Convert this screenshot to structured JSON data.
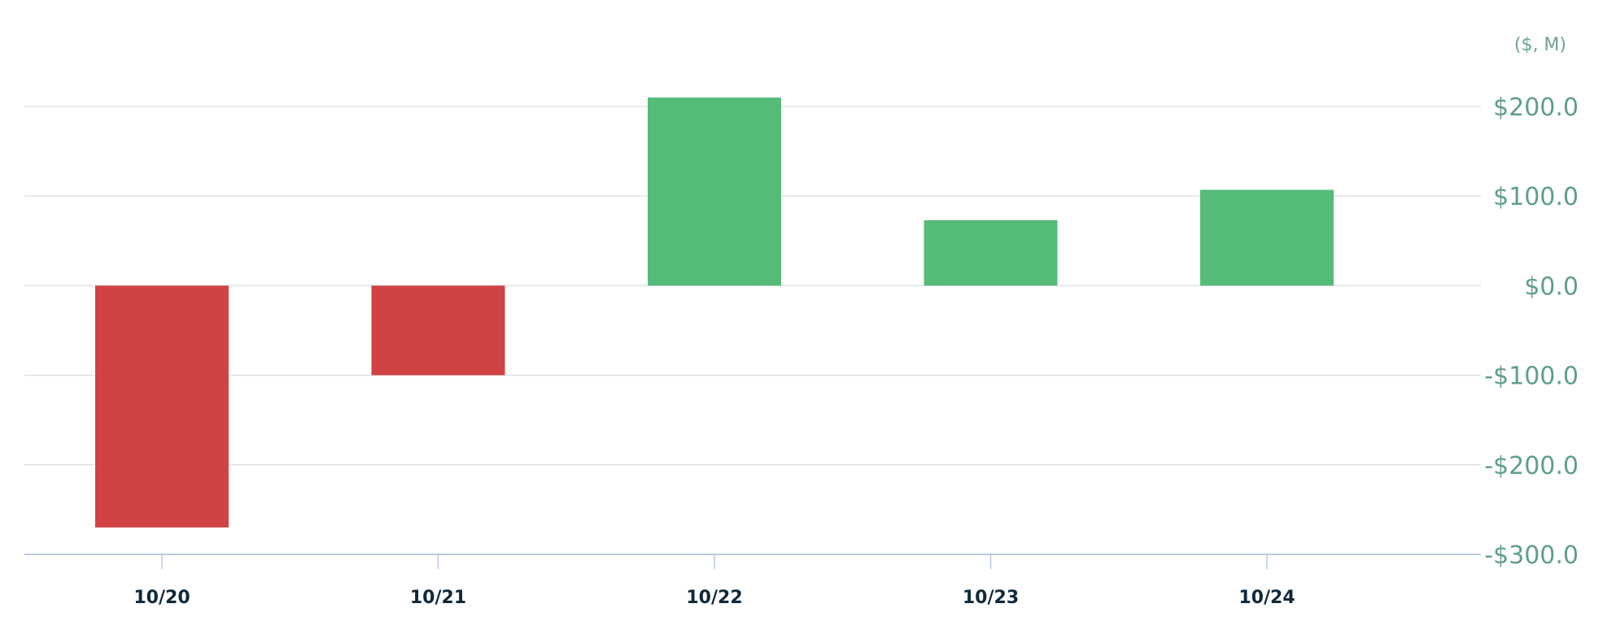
{
  "chart_data": {
    "type": "bar",
    "unit_label": "($, M)",
    "categories": [
      "10/20",
      "10/21",
      "10/22",
      "10/23",
      "10/24"
    ],
    "values": [
      -270,
      -100,
      210,
      73,
      107
    ],
    "ylim": [
      -300,
      200
    ],
    "y_ticks": [
      {
        "value": 200,
        "label": "$200.0"
      },
      {
        "value": 100,
        "label": "$100.0"
      },
      {
        "value": 0,
        "label": "$0.0"
      },
      {
        "value": -100,
        "label": "-$100.0"
      },
      {
        "value": -200,
        "label": "-$200.0"
      },
      {
        "value": -300,
        "label": "-$300.0"
      }
    ],
    "y_axis_side": "right",
    "grid": true,
    "legend": false,
    "colors": {
      "positive": "#55bb79",
      "negative": "#d04244",
      "grid": "#dde3ea",
      "axis": "#b9cbe0",
      "tick_text": "#5f9e8d",
      "category_text": "#10293a"
    }
  }
}
